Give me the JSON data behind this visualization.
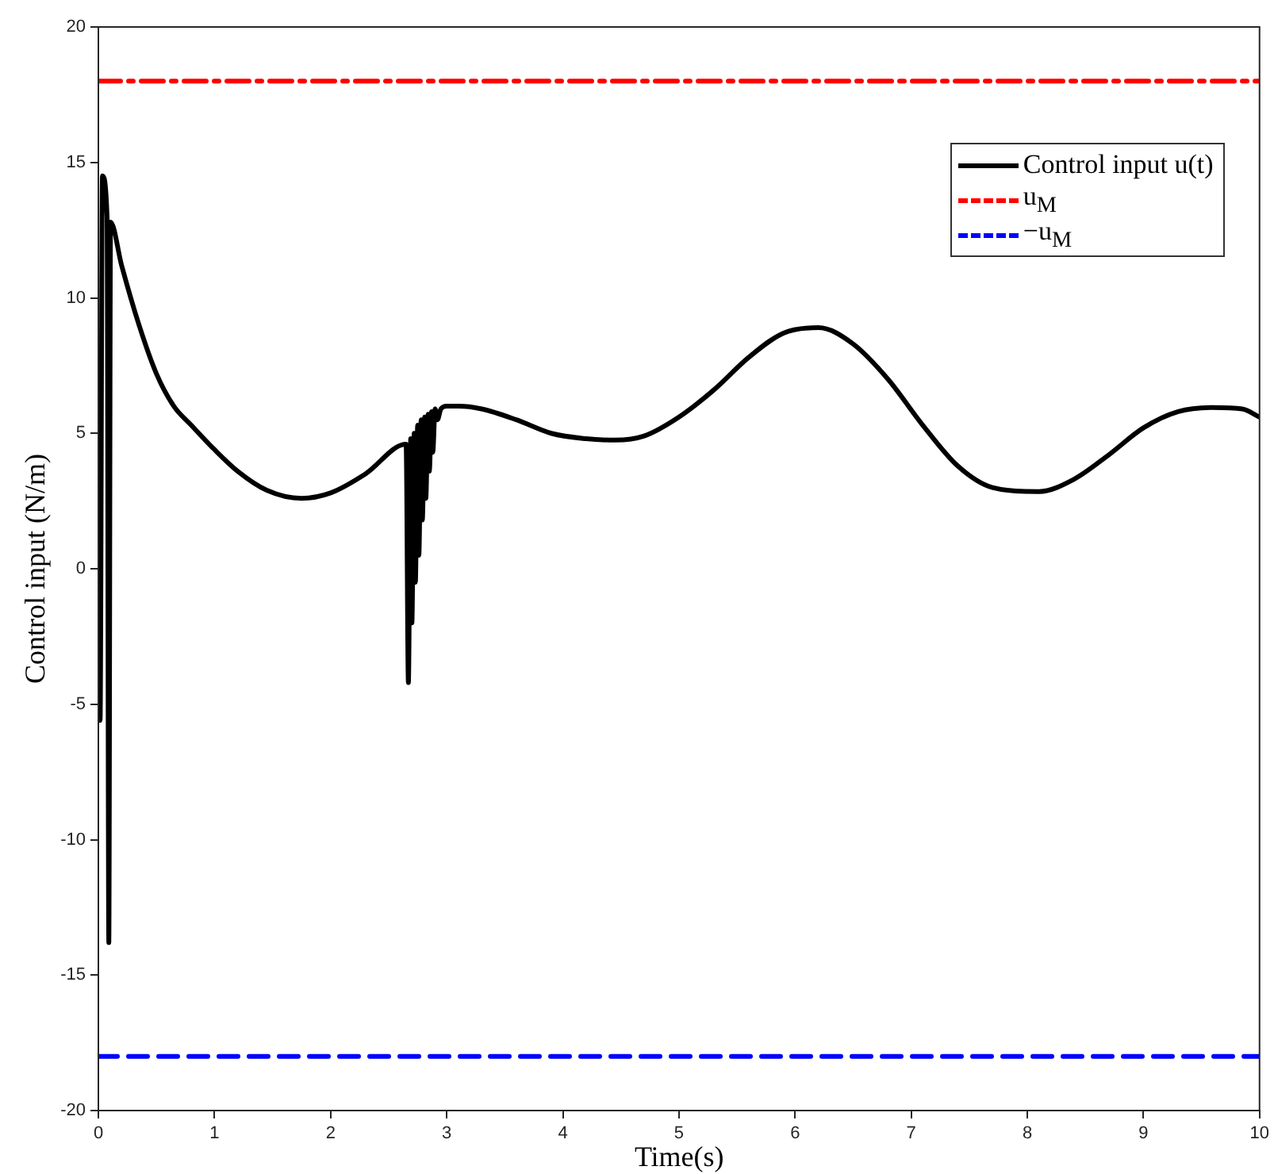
{
  "chart_data": {
    "type": "line",
    "xlabel": "Time(s)",
    "ylabel": "Control input (N/m)",
    "xlim": [
      0,
      10
    ],
    "ylim": [
      -20,
      20
    ],
    "xticks": [
      0,
      1,
      2,
      3,
      4,
      5,
      6,
      7,
      8,
      9,
      10
    ],
    "yticks": [
      -20,
      -15,
      -10,
      -5,
      0,
      5,
      10,
      15,
      20
    ],
    "grid": false,
    "legend": "top right",
    "marker": "none",
    "series": [
      {
        "name": "Control input u(t)",
        "color": "#000000",
        "line_style": "solid",
        "x": [
          0,
          0.015,
          0.035,
          0.075,
          0.09,
          0.105,
          0.2,
          0.35,
          0.5,
          0.65,
          0.8,
          1,
          1.2,
          1.45,
          1.75,
          2.0,
          2.3,
          2.65,
          2.67,
          2.69,
          2.7,
          2.72,
          2.73,
          2.75,
          2.76,
          2.78,
          2.79,
          2.81,
          2.82,
          2.84,
          2.85,
          2.87,
          2.88,
          2.9,
          2.92,
          2.95,
          3.0,
          3.1,
          3.3,
          3.6,
          3.9,
          4.2,
          4.45,
          4.7,
          5.0,
          5.3,
          5.6,
          5.9,
          6.2,
          6.5,
          6.8,
          7.1,
          7.4,
          7.7,
          8.1,
          8.4,
          8.7,
          9.0,
          9.3,
          9.6,
          9.85,
          10
        ],
        "values": [
          3.8,
          -5.6,
          14.5,
          13.0,
          -13.8,
          12.8,
          11.2,
          9.0,
          7.2,
          6.0,
          5.3,
          4.4,
          3.6,
          2.9,
          2.6,
          2.8,
          3.5,
          4.6,
          -4.2,
          4.8,
          -2.0,
          5.0,
          -0.5,
          5.3,
          0.5,
          5.5,
          1.8,
          5.6,
          2.6,
          5.7,
          3.6,
          5.8,
          4.3,
          5.9,
          5.5,
          5.9,
          6.0,
          6.0,
          5.9,
          5.5,
          5.0,
          4.8,
          4.75,
          4.9,
          5.6,
          6.6,
          7.8,
          8.7,
          8.9,
          8.3,
          7.0,
          5.3,
          3.8,
          3.0,
          2.85,
          3.3,
          4.2,
          5.2,
          5.8,
          5.95,
          5.9,
          5.6
        ]
      },
      {
        "name": "u$_{M}$",
        "color": "#ff0000",
        "line_style": "dashdot",
        "x": [
          0,
          10
        ],
        "values": [
          18,
          18
        ]
      },
      {
        "name": "−u$_{M}$",
        "color": "#0000ff",
        "line_style": "dashed",
        "x": [
          0,
          10
        ],
        "values": [
          -18,
          -18
        ]
      }
    ]
  }
}
